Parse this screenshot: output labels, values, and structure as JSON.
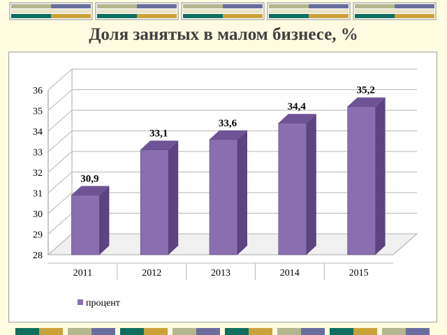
{
  "slide_title": "Доля занятых в малом бизнесе, %",
  "colors": {
    "background": "#fdfbe0",
    "bar_front": "#8a6fb0",
    "bar_side": "#5b4480",
    "bar_top": "#6e5496",
    "deco_teal": "#0f6e5e",
    "deco_gold": "#c9a23a",
    "deco_olive": "#b3b78e",
    "deco_slate": "#6a6e9c"
  },
  "chart_data": {
    "type": "bar",
    "categories": [
      "2011",
      "2012",
      "2013",
      "2014",
      "2015"
    ],
    "series": [
      {
        "name": "процент",
        "values": [
          30.9,
          33.1,
          33.6,
          34.4,
          35.2
        ]
      }
    ],
    "data_labels": [
      "30,9",
      "33,1",
      "33,6",
      "34,4",
      "35,2"
    ],
    "ylim": [
      28,
      36
    ],
    "yticks": [
      28,
      29,
      30,
      31,
      32,
      33,
      34,
      35,
      36
    ],
    "legend": "bottom-left",
    "grid": true,
    "style": "3d"
  }
}
